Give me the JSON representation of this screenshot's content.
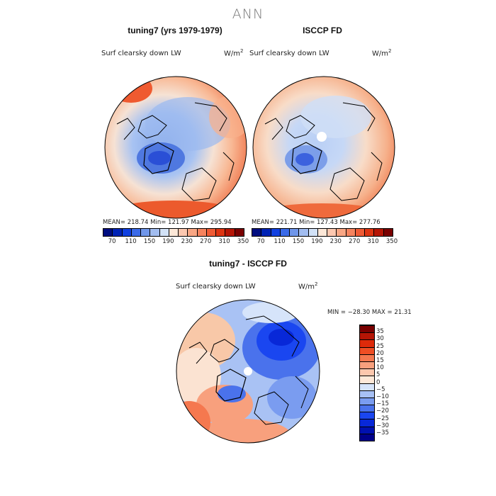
{
  "figure": {
    "title": "ANN"
  },
  "panels": [
    {
      "title": "tuning7 (yrs 1979-1979)",
      "variable": "Surf clearsky down LW",
      "units": "W/m",
      "units_sup": "2",
      "stats": "MEAN= 218.74   Min= 121.97   Max= 295.94"
    },
    {
      "title": "ISCCP FD",
      "variable": "Surf clearsky down LW",
      "units": "W/m",
      "units_sup": "2",
      "stats": "MEAN= 221.71   Min= 127.43   Max= 277.76"
    },
    {
      "title": "tuning7 - ISCCP FD",
      "variable": "Surf clearsky down LW",
      "units": "W/m",
      "units_sup": "2",
      "stats": "MIN = −28.30 MAX =  21.31"
    }
  ],
  "abs_colorbar": {
    "ticks": [
      "70",
      "110",
      "150",
      "190",
      "230",
      "270",
      "310",
      "350"
    ],
    "colors": [
      "#000d80",
      "#0023b5",
      "#1040e0",
      "#3a6ae8",
      "#6f96ea",
      "#a2bdf0",
      "#d2e2f7",
      "#fde8d8",
      "#fcc8b0",
      "#f8a684",
      "#f5835e",
      "#ef5b35",
      "#dd3412",
      "#b51505",
      "#7a0000"
    ]
  },
  "diff_colorbar": {
    "ticks": [
      "−35",
      "−30",
      "−25",
      "−20",
      "−15",
      "−10",
      "−5",
      "0",
      "5",
      "10",
      "15",
      "20",
      "25",
      "30",
      "35"
    ],
    "colors": [
      "#00008a",
      "#0010b0",
      "#0828d8",
      "#1a46f0",
      "#4a72ec",
      "#7a9cf0",
      "#a7c0f4",
      "#d6e4fa",
      "#fde8d8",
      "#fcc7ad",
      "#f8a07d",
      "#f5784f",
      "#ef4e24",
      "#dd2a0a",
      "#b51505",
      "#7a0000"
    ]
  }
}
